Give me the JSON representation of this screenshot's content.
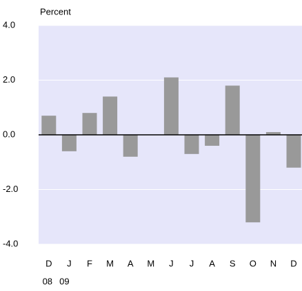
{
  "chart_data": {
    "type": "bar",
    "y_label": "Percent",
    "categories": [
      "D",
      "J",
      "F",
      "M",
      "A",
      "M",
      "J",
      "J",
      "A",
      "S",
      "O",
      "N",
      "D"
    ],
    "x_sublabels": [
      "08",
      "09",
      null,
      null,
      null,
      null,
      null,
      null,
      null,
      null,
      null,
      null,
      null
    ],
    "values": [
      0.7,
      -0.6,
      0.8,
      1.4,
      -0.8,
      0,
      2.1,
      -0.7,
      -0.4,
      1.8,
      -3.2,
      0.1,
      -1.2
    ],
    "color": "#999999",
    "ylim": [
      -4,
      4
    ],
    "yticks": [
      {
        "value": -4,
        "label": "-4.0"
      },
      {
        "value": -2,
        "label": "-2.0"
      },
      {
        "value": 0,
        "label": "0.0"
      },
      {
        "value": 2,
        "label": "2.0"
      },
      {
        "value": 4,
        "label": "4.0"
      }
    ],
    "grid": true
  }
}
